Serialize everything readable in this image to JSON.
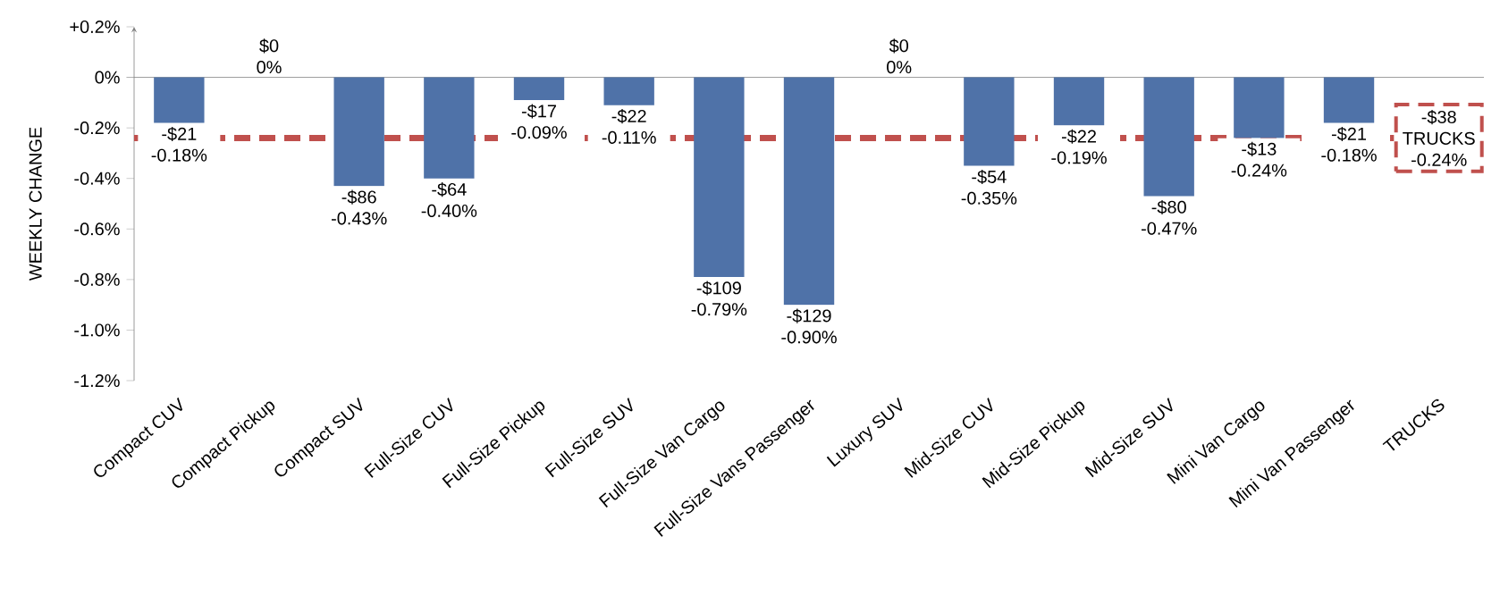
{
  "chart_data": {
    "type": "bar",
    "ylabel": "WEEKLY CHANGE",
    "categories": [
      "Compact CUV",
      "Compact Pickup",
      "Compact SUV",
      "Full-Size CUV",
      "Full-Size Pickup",
      "Full-Size SUV",
      "Full-Size Van Cargo",
      "Full-Size Vans Passenger",
      "Luxury SUV",
      "Mid-Size CUV",
      "Mid-Size Pickup",
      "Mid-Size SUV",
      "Mini Van Cargo",
      "Mini Van Passenger",
      "TRUCKS"
    ],
    "values": [
      -0.18,
      0,
      -0.43,
      -0.4,
      -0.09,
      -0.11,
      -0.79,
      -0.9,
      0,
      -0.35,
      -0.19,
      -0.47,
      -0.24,
      -0.18,
      null
    ],
    "value_labels": [
      "-$21 -0.18%",
      "$0 0%",
      "-$86 -0.43%",
      "-$64 -0.40%",
      "-$17 -0.09%",
      "-$22 -0.11%",
      "-$109 -0.79%",
      "-$129 -0.90%",
      "$0 0%",
      "-$54 -0.35%",
      "-$22 -0.19%",
      "-$80 -0.47%",
      "-$13 -0.24%",
      "-$21 -0.18%",
      null
    ],
    "color": "#4f72a8",
    "ylim": [
      -1.2,
      0.2
    ],
    "yticks": [
      {
        "value": 0.2,
        "label": "+0.2%"
      },
      {
        "value": 0,
        "label": "0%"
      },
      {
        "value": -0.2,
        "label": "-0.2%"
      },
      {
        "value": -0.4,
        "label": "-0.4%"
      },
      {
        "value": -0.6,
        "label": "-0.6%"
      },
      {
        "value": -0.8,
        "label": "-0.8%"
      },
      {
        "value": -1.0,
        "label": "-1.0%"
      },
      {
        "value": -1.2,
        "label": "-1.2%"
      }
    ],
    "ref_lines": [
      {
        "axis": "y",
        "value": -0.24,
        "label": "-$38 TRUCKS -0.24%",
        "color": "#c0504d",
        "line_style": "dashed"
      }
    ]
  }
}
